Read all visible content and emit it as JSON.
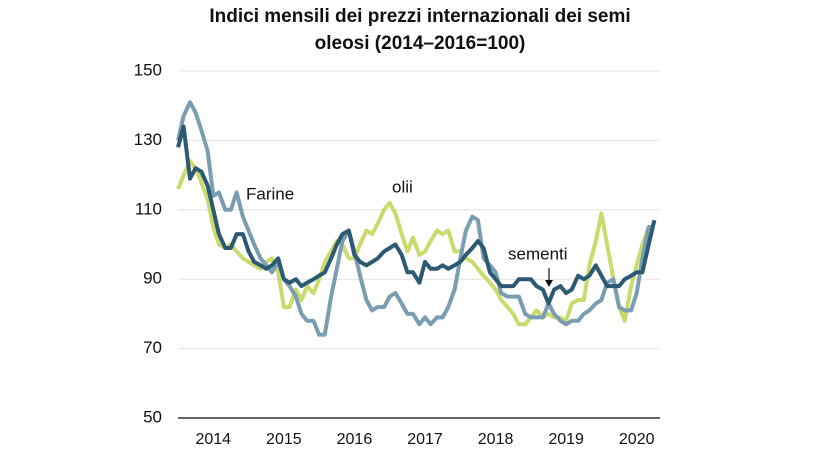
{
  "chart_data": {
    "type": "line",
    "title": [
      "Indici mensili dei prezzi internazionali dei semi",
      "oleosi (2014–2016=100)"
    ],
    "x": [
      2014,
      2014.08,
      2014.17,
      2014.25,
      2014.33,
      2014.42,
      2014.5,
      2014.58,
      2014.67,
      2014.75,
      2014.83,
      2014.92,
      2015,
      2015.08,
      2015.17,
      2015.25,
      2015.33,
      2015.42,
      2015.5,
      2015.58,
      2015.67,
      2015.75,
      2015.83,
      2015.92,
      2016,
      2016.08,
      2016.17,
      2016.25,
      2016.33,
      2016.42,
      2016.5,
      2016.58,
      2016.67,
      2016.75,
      2016.83,
      2016.92,
      2017,
      2017.08,
      2017.17,
      2017.25,
      2017.33,
      2017.42,
      2017.5,
      2017.58,
      2017.67,
      2017.75,
      2017.83,
      2017.92,
      2018,
      2018.08,
      2018.17,
      2018.25,
      2018.33,
      2018.42,
      2018.5,
      2018.58,
      2018.67,
      2018.75,
      2018.83,
      2018.92,
      2019,
      2019.08,
      2019.17,
      2019.25,
      2019.33,
      2019.42,
      2019.5,
      2019.58,
      2019.67,
      2019.75,
      2019.83,
      2019.92,
      2020,
      2020.08,
      2020.17,
      2020.25,
      2020.33,
      2020.42,
      2020.5,
      2020.58,
      2020.67,
      2020.75
    ],
    "series": [
      {
        "name": "olii",
        "color": "#c8db6c",
        "values": [
          116,
          120,
          124,
          122,
          118,
          113,
          105,
          100,
          99,
          100,
          98,
          96,
          95,
          94,
          93,
          95,
          96,
          92,
          82,
          82,
          87,
          84,
          88,
          86,
          90,
          95,
          98,
          101,
          100,
          96,
          96,
          100,
          104,
          103,
          106,
          110,
          112,
          109,
          103,
          98,
          102,
          97,
          98,
          101,
          104,
          103,
          104,
          98,
          98,
          96,
          95,
          93,
          91,
          89,
          87,
          84,
          82,
          80,
          77,
          77,
          79,
          81,
          79,
          80,
          79,
          79,
          78,
          83,
          84,
          84,
          94,
          101,
          109,
          100,
          90,
          82,
          78,
          88,
          94,
          100,
          105,
          105
        ]
      },
      {
        "name": "Farine",
        "color": "#7b9db1",
        "values": [
          130,
          137,
          141,
          138,
          133,
          127,
          114,
          115,
          110,
          110,
          115,
          108,
          104,
          100,
          96,
          94,
          92,
          95,
          90,
          88,
          85,
          80,
          78,
          78,
          74,
          74,
          85,
          93,
          101,
          104,
          98,
          91,
          84,
          81,
          82,
          82,
          85,
          86,
          83,
          80,
          80,
          77,
          79,
          77,
          79,
          79,
          82,
          87,
          96,
          104,
          108,
          107,
          96,
          94,
          92,
          86,
          85,
          85,
          85,
          80,
          79,
          79,
          79,
          83,
          80,
          78,
          77,
          78,
          78,
          80,
          81,
          83,
          84,
          89,
          90,
          82,
          81,
          81,
          86,
          96,
          105,
          105
        ]
      },
      {
        "name": "sementi",
        "color": "#2c5a73",
        "values": [
          128,
          134,
          119,
          122,
          121,
          117,
          110,
          103,
          99,
          99,
          103,
          103,
          98,
          95,
          94,
          93,
          94,
          96,
          90,
          89,
          90,
          88,
          89,
          90,
          91,
          92,
          96,
          100,
          103,
          104,
          97,
          95,
          94,
          95,
          96,
          98,
          99,
          100,
          97,
          92,
          92,
          89,
          95,
          93,
          93,
          94,
          93,
          94,
          95,
          97,
          99,
          101,
          99,
          92,
          90,
          88,
          88,
          88,
          90,
          90,
          90,
          88,
          87,
          83,
          87,
          88,
          86,
          87,
          91,
          90,
          91,
          94,
          91,
          88,
          88,
          88,
          90,
          91,
          92,
          92,
          100,
          107
        ]
      }
    ],
    "xlim": [
      2014,
      2020.83
    ],
    "xticks": [
      {
        "value": 2014.5,
        "label": "2014"
      },
      {
        "value": 2015.5,
        "label": "2015"
      },
      {
        "value": 2016.5,
        "label": "2016"
      },
      {
        "value": 2017.5,
        "label": "2017"
      },
      {
        "value": 2018.5,
        "label": "2018"
      },
      {
        "value": 2019.5,
        "label": "2019"
      },
      {
        "value": 2020.5,
        "label": "2020"
      }
    ],
    "ylim": [
      50,
      150
    ],
    "yticks": [
      50,
      70,
      90,
      110,
      130,
      150
    ],
    "grid": true
  }
}
